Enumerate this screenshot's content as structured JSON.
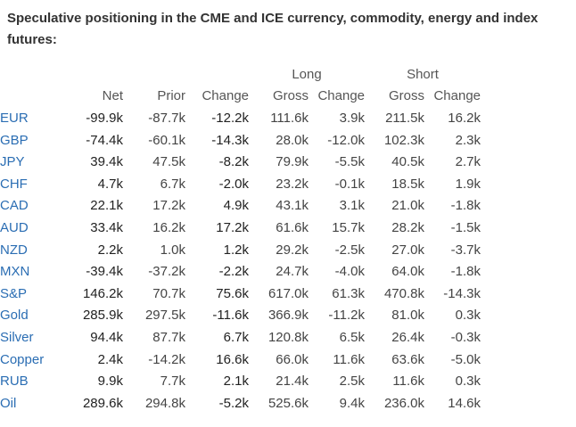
{
  "title": "Speculative positioning in the CME and ICE currency, commodity, energy and index futures:",
  "groups": {
    "long": "Long",
    "short": "Short"
  },
  "headers": {
    "net": "Net",
    "prior": "Prior",
    "change": "Change",
    "long_gross": "Gross",
    "long_change": "Change",
    "short_gross": "Gross",
    "short_change": "Change"
  },
  "rows": [
    {
      "label": "EUR",
      "net": "-99.9k",
      "prior": "-87.7k",
      "change": "-12.2k",
      "long_gross": "111.6k",
      "long_change": "3.9k",
      "short_gross": "211.5k",
      "short_change": "16.2k"
    },
    {
      "label": "GBP",
      "net": "-74.4k",
      "prior": "-60.1k",
      "change": "-14.3k",
      "long_gross": "28.0k",
      "long_change": "-12.0k",
      "short_gross": "102.3k",
      "short_change": "2.3k"
    },
    {
      "label": "JPY",
      "net": "39.4k",
      "prior": "47.5k",
      "change": "-8.2k",
      "long_gross": "79.9k",
      "long_change": "-5.5k",
      "short_gross": "40.5k",
      "short_change": "2.7k"
    },
    {
      "label": "CHF",
      "net": "4.7k",
      "prior": "6.7k",
      "change": "-2.0k",
      "long_gross": "23.2k",
      "long_change": "-0.1k",
      "short_gross": "18.5k",
      "short_change": "1.9k"
    },
    {
      "label": "CAD",
      "net": "22.1k",
      "prior": "17.2k",
      "change": "4.9k",
      "long_gross": "43.1k",
      "long_change": "3.1k",
      "short_gross": "21.0k",
      "short_change": "-1.8k"
    },
    {
      "label": "AUD",
      "net": "33.4k",
      "prior": "16.2k",
      "change": "17.2k",
      "long_gross": "61.6k",
      "long_change": "15.7k",
      "short_gross": "28.2k",
      "short_change": "-1.5k"
    },
    {
      "label": "NZD",
      "net": "2.2k",
      "prior": "1.0k",
      "change": "1.2k",
      "long_gross": "29.2k",
      "long_change": "-2.5k",
      "short_gross": "27.0k",
      "short_change": "-3.7k"
    },
    {
      "label": "MXN",
      "net": "-39.4k",
      "prior": "-37.2k",
      "change": "-2.2k",
      "long_gross": "24.7k",
      "long_change": "-4.0k",
      "short_gross": "64.0k",
      "short_change": "-1.8k"
    },
    {
      "label": "S&P",
      "net": "146.2k",
      "prior": "70.7k",
      "change": "75.6k",
      "long_gross": "617.0k",
      "long_change": "61.3k",
      "short_gross": "470.8k",
      "short_change": "-14.3k"
    },
    {
      "label": "Gold",
      "net": "285.9k",
      "prior": "297.5k",
      "change": "-11.6k",
      "long_gross": "366.9k",
      "long_change": "-11.2k",
      "short_gross": "81.0k",
      "short_change": "0.3k"
    },
    {
      "label": "Silver",
      "net": "94.4k",
      "prior": "87.7k",
      "change": "6.7k",
      "long_gross": "120.8k",
      "long_change": "6.5k",
      "short_gross": "26.4k",
      "short_change": "-0.3k"
    },
    {
      "label": "Copper",
      "net": "2.4k",
      "prior": "-14.2k",
      "change": "16.6k",
      "long_gross": "66.0k",
      "long_change": "11.6k",
      "short_gross": "63.6k",
      "short_change": "-5.0k"
    },
    {
      "label": "RUB",
      "net": "9.9k",
      "prior": "7.7k",
      "change": "2.1k",
      "long_gross": "21.4k",
      "long_change": "2.5k",
      "short_gross": "11.6k",
      "short_change": "0.3k"
    },
    {
      "label": "Oil",
      "net": "289.6k",
      "prior": "294.8k",
      "change": "-5.2k",
      "long_gross": "525.6k",
      "long_change": "9.4k",
      "short_gross": "236.0k",
      "short_change": "14.6k"
    }
  ]
}
